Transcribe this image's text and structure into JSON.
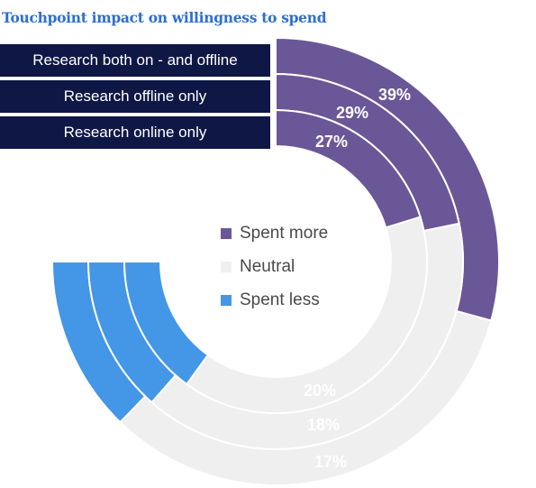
{
  "chart_data": {
    "type": "radial-bar",
    "title": "Touchpoint impact on willingness to spend",
    "rings": [
      {
        "label": "Research both on - and offline",
        "spent_more": 39,
        "neutral": 44,
        "spent_less": 17,
        "spent_more_label": "39%",
        "spent_less_label": "17%"
      },
      {
        "label": "Research offline only",
        "spent_more": 29,
        "neutral": 53,
        "spent_less": 18,
        "spent_more_label": "29%",
        "spent_less_label": "18%"
      },
      {
        "label": "Research online only",
        "spent_more": 27,
        "neutral": 53,
        "spent_less": 20,
        "spent_more_label": "27%",
        "spent_less_label": "20%"
      }
    ],
    "legend": [
      {
        "name": "Spent more",
        "color": "#6a5797"
      },
      {
        "name": "Neutral",
        "color": "#efefef"
      },
      {
        "name": "Spent less",
        "color": "#4496e6"
      }
    ]
  }
}
